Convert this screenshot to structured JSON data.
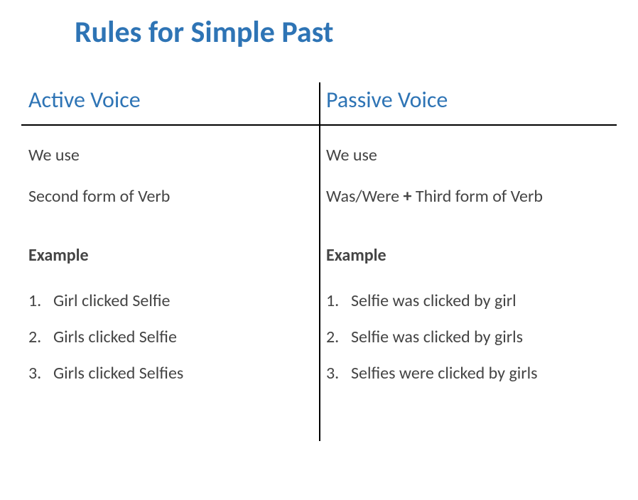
{
  "title": "Rules for Simple Past",
  "colors": {
    "heading": "#2e74b5",
    "text": "#444444",
    "line": "#000000",
    "background": "#ffffff"
  },
  "typography": {
    "title_fontsize": 42,
    "header_fontsize": 32,
    "body_fontsize": 24,
    "font_family": "Calibri"
  },
  "active": {
    "header": "Active Voice",
    "we_use": "We use",
    "form": "Second form of Verb",
    "example_label": "Example",
    "examples": [
      {
        "num": "1.",
        "text": "Girl clicked Selfie"
      },
      {
        "num": "2.",
        "text": "Girls clicked Selfie"
      },
      {
        "num": "3.",
        "text": "Girls clicked Selfies"
      }
    ]
  },
  "passive": {
    "header": "Passive Voice",
    "we_use": "We use",
    "form_prefix": "Was/Were ",
    "form_bold": "+",
    "form_suffix": " Third form of Verb",
    "example_label": "Example",
    "examples": [
      {
        "num": "1.",
        "text": "Selfie was clicked by girl"
      },
      {
        "num": "2.",
        "text": "Selfie was clicked by girls"
      },
      {
        "num": "3.",
        "text": "Selfies were clicked by girls"
      }
    ]
  }
}
